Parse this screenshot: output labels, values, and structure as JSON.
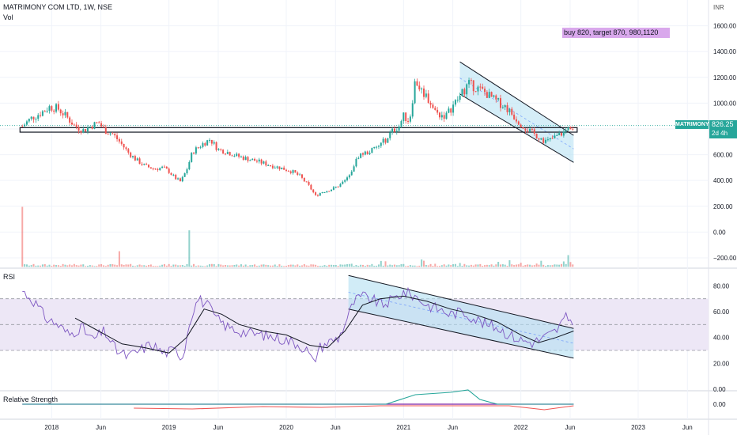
{
  "header": {
    "title": "MATRIMONY COM LTD, 1W, NSE",
    "vol_label": "Vol",
    "currency": "INR"
  },
  "note": "buy 820, target 870, 980,1120",
  "badge": {
    "symbol": "MATRIMONY",
    "price": "826.25",
    "countdown": "2d 4h"
  },
  "panels": {
    "rsi_label": "RSI",
    "rs_label": "Relative Strength"
  },
  "colors": {
    "up": "#26a69a",
    "down": "#ef5350",
    "rsi_line": "#7e57c2",
    "rsi_band": "#ede7f6",
    "channel_fill": "#b3e0f2",
    "note_bg": "#d9a8ec"
  },
  "chart_data": [
    {
      "type": "candlestick",
      "title": "MATRIMONY COM LTD, 1W, NSE",
      "ylim": [
        -280,
        1800
      ],
      "y_ticks": [
        "1600.00",
        "1400.00",
        "1200.00",
        "1000.00",
        "800.00",
        "600.00",
        "400.00",
        "200.00",
        "0.00",
        "−200.00"
      ],
      "x_ticks": [
        "2018",
        "Jun",
        "2019",
        "Jun",
        "2020",
        "Jun",
        "2021",
        "Jun",
        "2022",
        "Jun",
        "2023",
        "Jun"
      ],
      "x_range": [
        2017.6,
        2023.6
      ],
      "close_path": [
        [
          2017.75,
          820
        ],
        [
          2017.82,
          880
        ],
        [
          2017.9,
          920
        ],
        [
          2017.98,
          970
        ],
        [
          2018.05,
          960
        ],
        [
          2018.12,
          900
        ],
        [
          2018.2,
          820
        ],
        [
          2018.27,
          790
        ],
        [
          2018.33,
          820
        ],
        [
          2018.4,
          850
        ],
        [
          2018.45,
          790
        ],
        [
          2018.52,
          760
        ],
        [
          2018.58,
          700
        ],
        [
          2018.65,
          620
        ],
        [
          2018.72,
          560
        ],
        [
          2018.8,
          510
        ],
        [
          2018.88,
          490
        ],
        [
          2018.95,
          500
        ],
        [
          2019.0,
          470
        ],
        [
          2019.05,
          420
        ],
        [
          2019.1,
          390
        ],
        [
          2019.15,
          480
        ],
        [
          2019.2,
          620
        ],
        [
          2019.28,
          680
        ],
        [
          2019.35,
          720
        ],
        [
          2019.42,
          640
        ],
        [
          2019.5,
          620
        ],
        [
          2019.58,
          590
        ],
        [
          2019.66,
          570
        ],
        [
          2019.75,
          550
        ],
        [
          2019.82,
          530
        ],
        [
          2019.9,
          510
        ],
        [
          2019.98,
          490
        ],
        [
          2020.05,
          470
        ],
        [
          2020.12,
          430
        ],
        [
          2020.2,
          350
        ],
        [
          2020.25,
          280
        ],
        [
          2020.3,
          310
        ],
        [
          2020.38,
          330
        ],
        [
          2020.45,
          360
        ],
        [
          2020.5,
          400
        ],
        [
          2020.55,
          470
        ],
        [
          2020.62,
          600
        ],
        [
          2020.7,
          620
        ],
        [
          2020.78,
          660
        ],
        [
          2020.85,
          720
        ],
        [
          2020.9,
          780
        ],
        [
          2020.96,
          820
        ],
        [
          2021.0,
          900
        ],
        [
          2021.05,
          860
        ],
        [
          2021.1,
          1180
        ],
        [
          2021.15,
          1100
        ],
        [
          2021.2,
          1050
        ],
        [
          2021.28,
          920
        ],
        [
          2021.36,
          900
        ],
        [
          2021.42,
          980
        ],
        [
          2021.48,
          1050
        ],
        [
          2021.55,
          1150
        ],
        [
          2021.62,
          1120
        ],
        [
          2021.7,
          1080
        ],
        [
          2021.78,
          1020
        ],
        [
          2021.86,
          980
        ],
        [
          2021.92,
          920
        ],
        [
          2022.0,
          840
        ],
        [
          2022.08,
          780
        ],
        [
          2022.15,
          740
        ],
        [
          2022.22,
          700
        ],
        [
          2022.3,
          740
        ],
        [
          2022.38,
          780
        ],
        [
          2022.42,
          820
        ],
        [
          2022.46,
          826
        ]
      ],
      "volume_spikes": [
        [
          2017.75,
          230
        ],
        [
          2018.58,
          60
        ],
        [
          2019.18,
          140
        ],
        [
          2022.4,
          45
        ]
      ],
      "horizontal_zone": [
        775,
        810
      ],
      "channel": {
        "upper": [
          [
            2021.48,
            1320
          ],
          [
            2022.45,
            750
          ]
        ],
        "lower": [
          [
            2021.48,
            1070
          ],
          [
            2022.45,
            540
          ]
        ]
      }
    },
    {
      "type": "line",
      "title": "RSI",
      "ylim": [
        0,
        90
      ],
      "y_ticks": [
        "80.00",
        "60.00",
        "40.00",
        "20.00",
        "0.00"
      ],
      "bands": [
        30,
        50,
        70
      ],
      "series": [
        {
          "values": [
            [
              2017.75,
              76
            ],
            [
              2017.85,
              68
            ],
            [
              2017.95,
              55
            ],
            [
              2018.05,
              50
            ],
            [
              2018.15,
              42
            ],
            [
              2018.25,
              48
            ],
            [
              2018.35,
              38
            ],
            [
              2018.45,
              45
            ],
            [
              2018.55,
              30
            ],
            [
              2018.65,
              25
            ],
            [
              2018.75,
              30
            ],
            [
              2018.85,
              35
            ],
            [
              2018.95,
              28
            ],
            [
              2019.05,
              30
            ],
            [
              2019.12,
              25
            ],
            [
              2019.18,
              55
            ],
            [
              2019.25,
              70
            ],
            [
              2019.33,
              65
            ],
            [
              2019.4,
              55
            ],
            [
              2019.5,
              48
            ],
            [
              2019.6,
              45
            ],
            [
              2019.7,
              43
            ],
            [
              2019.8,
              42
            ],
            [
              2019.9,
              40
            ],
            [
              2020.0,
              38
            ],
            [
              2020.1,
              35
            ],
            [
              2020.18,
              30
            ],
            [
              2020.23,
              20
            ],
            [
              2020.28,
              32
            ],
            [
              2020.35,
              36
            ],
            [
              2020.45,
              40
            ],
            [
              2020.52,
              55
            ],
            [
              2020.58,
              68
            ],
            [
              2020.65,
              72
            ],
            [
              2020.72,
              70
            ],
            [
              2020.82,
              65
            ],
            [
              2020.92,
              70
            ],
            [
              2021.0,
              75
            ],
            [
              2021.1,
              72
            ],
            [
              2021.2,
              65
            ],
            [
              2021.3,
              62
            ],
            [
              2021.4,
              58
            ],
            [
              2021.5,
              60
            ],
            [
              2021.6,
              55
            ],
            [
              2021.7,
              50
            ],
            [
              2021.8,
              48
            ],
            [
              2021.9,
              42
            ],
            [
              2022.0,
              38
            ],
            [
              2022.1,
              36
            ],
            [
              2022.2,
              40
            ],
            [
              2022.3,
              45
            ],
            [
              2022.38,
              55
            ],
            [
              2022.45,
              53
            ]
          ]
        },
        {
          "values": [
            [
              2018.2,
              55
            ],
            [
              2018.4,
              45
            ],
            [
              2018.6,
              35
            ],
            [
              2018.8,
              32
            ],
            [
              2019.0,
              28
            ],
            [
              2019.15,
              40
            ],
            [
              2019.3,
              62
            ],
            [
              2019.45,
              58
            ],
            [
              2019.6,
              50
            ],
            [
              2019.8,
              45
            ],
            [
              2020.0,
              42
            ],
            [
              2020.2,
              34
            ],
            [
              2020.35,
              32
            ],
            [
              2020.5,
              45
            ],
            [
              2020.65,
              65
            ],
            [
              2020.8,
              70
            ],
            [
              2021.0,
              72
            ],
            [
              2021.2,
              68
            ],
            [
              2021.4,
              62
            ],
            [
              2021.6,
              58
            ],
            [
              2021.8,
              52
            ],
            [
              2022.0,
              42
            ],
            [
              2022.15,
              36
            ],
            [
              2022.3,
              40
            ],
            [
              2022.45,
              45
            ]
          ]
        }
      ],
      "channel": {
        "upper": [
          [
            2020.53,
            88
          ],
          [
            2022.45,
            47
          ]
        ],
        "lower": [
          [
            2020.53,
            62
          ],
          [
            2022.45,
            24
          ]
        ]
      }
    },
    {
      "type": "line",
      "title": "Relative Strength",
      "y_ticks": [
        "0.00"
      ],
      "series": [
        {
          "color": "#26a69a",
          "values": [
            [
              2017.75,
              0
            ],
            [
              2020.85,
              0
            ],
            [
              2021.1,
              12
            ],
            [
              2021.4,
              15
            ],
            [
              2021.55,
              18
            ],
            [
              2021.65,
              6
            ],
            [
              2021.8,
              0
            ],
            [
              2022.45,
              0
            ]
          ]
        },
        {
          "color": "#ef5350",
          "values": [
            [
              2018.7,
              -5
            ],
            [
              2019.2,
              -6
            ],
            [
              2019.8,
              -3
            ],
            [
              2020.3,
              -4
            ],
            [
              2020.8,
              -2
            ],
            [
              2021.9,
              -2
            ],
            [
              2022.2,
              -7
            ],
            [
              2022.45,
              -2
            ]
          ]
        }
      ]
    }
  ]
}
